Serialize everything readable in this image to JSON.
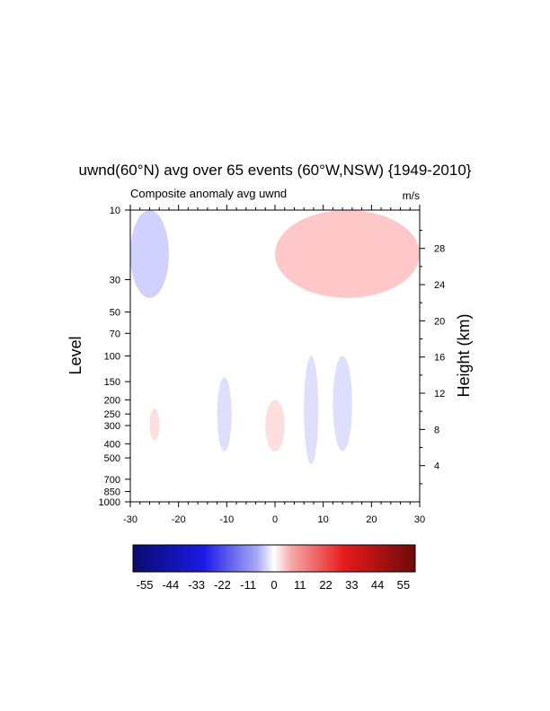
{
  "chart_data": {
    "type": "heatmap",
    "title": "uwnd(60°N) avg over 65 events (60°W,NSW) {1949-2010}",
    "subtitle": "Composite anomaly avg uwnd",
    "units": "m/s",
    "xlabel": "",
    "ylabel": "Level",
    "ylabel_right": "Height (km)",
    "xlim": [
      -30,
      30
    ],
    "ylim": [
      1000,
      10
    ],
    "y_scale": "log-pressure",
    "x_ticks": [
      "-30",
      "-20",
      "-10",
      "0",
      "10",
      "20",
      "30"
    ],
    "y_ticks": [
      "10",
      "30",
      "50",
      "70",
      "100",
      "150",
      "200",
      "250",
      "300",
      "400",
      "500",
      "700",
      "850",
      "1000"
    ],
    "y_right_ticks": [
      "4",
      "8",
      "12",
      "16",
      "20",
      "24",
      "28"
    ],
    "colorbar": {
      "min": -60,
      "max": 60,
      "labels": [
        "-55",
        "-44",
        "-33",
        "-22",
        "-11",
        "0",
        "11",
        "22",
        "33",
        "44",
        "55"
      ],
      "colors": [
        "#0a0a6e",
        "#1a1ae6",
        "#9f9ff5",
        "#ffffff",
        "#f5a0a0",
        "#e61a1a",
        "#6e0a0a"
      ]
    },
    "features": [
      {
        "type": "anomaly",
        "sign": "positive",
        "x": [
          0,
          30
        ],
        "p": [
          10,
          40
        ],
        "value": 3
      },
      {
        "type": "anomaly",
        "sign": "negative",
        "x": [
          -30,
          -22
        ],
        "p": [
          10,
          40
        ],
        "value": -2
      },
      {
        "type": "anomaly",
        "sign": "positive",
        "x": [
          -2,
          2
        ],
        "p": [
          200,
          450
        ],
        "value": 1
      },
      {
        "type": "anomaly",
        "sign": "negative",
        "x": [
          12,
          16
        ],
        "p": [
          100,
          450
        ],
        "value": -1
      },
      {
        "type": "anomaly",
        "sign": "negative",
        "x": [
          6,
          9
        ],
        "p": [
          100,
          550
        ],
        "value": -1
      },
      {
        "type": "anomaly",
        "sign": "negative",
        "x": [
          -12,
          -9
        ],
        "p": [
          140,
          450
        ],
        "value": -1
      },
      {
        "type": "anomaly",
        "sign": "positive",
        "x": [
          -26,
          -24
        ],
        "p": [
          230,
          380
        ],
        "value": 1
      }
    ]
  }
}
